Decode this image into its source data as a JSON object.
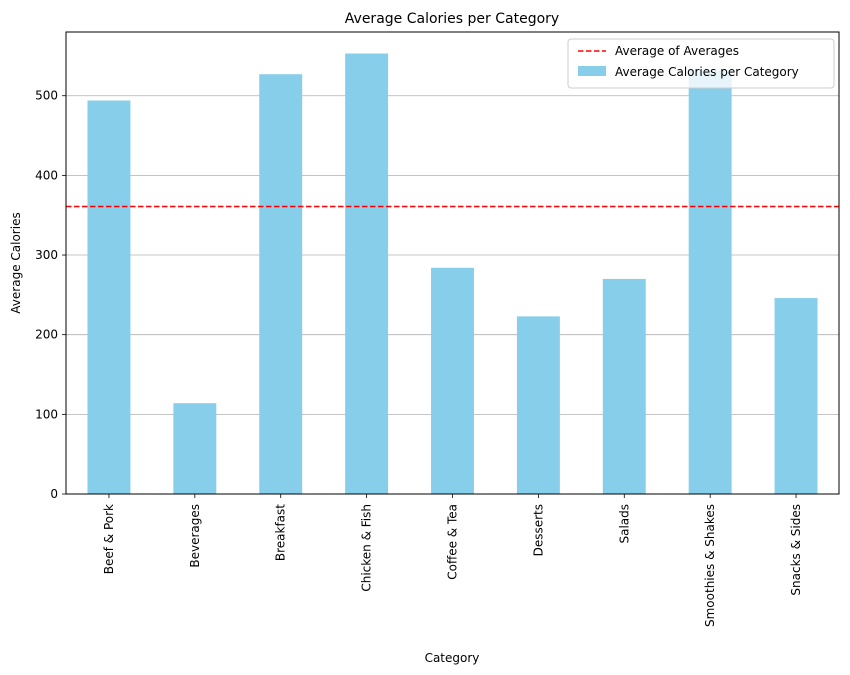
{
  "chart_data": {
    "type": "bar",
    "title": "Average Calories per Category",
    "xlabel": "Category",
    "ylabel": "Average Calories",
    "categories": [
      "Beef & Pork",
      "Beverages",
      "Breakfast",
      "Chicken & Fish",
      "Coffee & Tea",
      "Desserts",
      "Salads",
      "Smoothies & Shakes",
      "Snacks & Sides"
    ],
    "series": [
      {
        "name": "Average Calories per Category",
        "values": [
          494,
          114,
          527,
          553,
          284,
          223,
          270,
          532,
          246
        ],
        "color": "#87CEEB"
      }
    ],
    "reference_line": {
      "name": "Average of Averages",
      "value": 361,
      "color": "#ff0000",
      "style": "dashed"
    },
    "ylim": [
      0,
      580
    ],
    "yticks": [
      0,
      100,
      200,
      300,
      400,
      500
    ],
    "grid": "y",
    "legend_position": "top-right"
  }
}
